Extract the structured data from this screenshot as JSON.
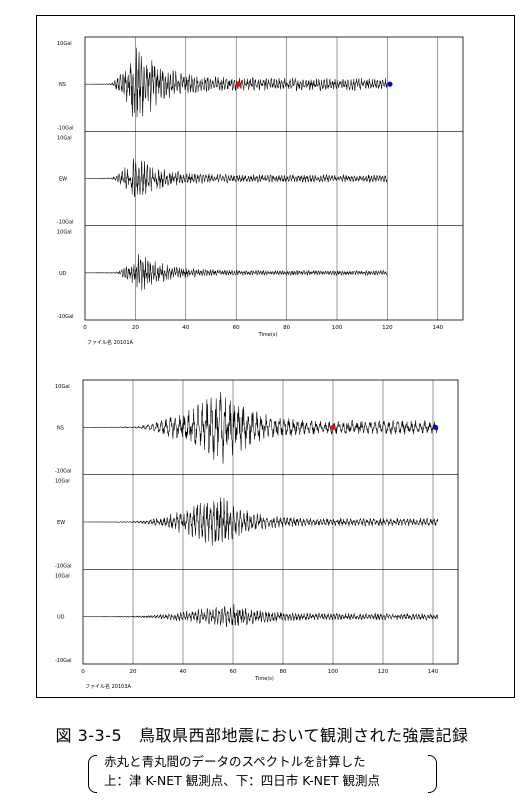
{
  "figure": {
    "caption_number": "図 3-3-5",
    "caption_title": "鳥取県西部地震において観測された強震記録",
    "note_lines": [
      "赤丸と青丸間のデータのスペクトルを計算した",
      "上：津 K-NET 観測点、下：四日市 K-NET 観測点"
    ]
  },
  "colors": {
    "red_marker": "#ff0000",
    "blue_marker": "#0000ff",
    "trace": "#000000",
    "grid": "#000000"
  },
  "chart_data": [
    {
      "type": "line",
      "title": "",
      "file_label": "ファイル名 20101A",
      "xlabel": "Time(s)",
      "x_ticks": [
        0,
        20,
        40,
        60,
        80,
        100,
        120,
        140
      ],
      "xlim": [
        0,
        150
      ],
      "y_top_label": "10Gal",
      "y_bottom_label": "-10Gal",
      "ylim": [
        -10,
        10
      ],
      "record_end_s": 120,
      "channels": [
        {
          "name": "NS",
          "onset_s": 10,
          "peak_s": 20,
          "peak_amp": 9.5,
          "coda": 1.3,
          "freq": 0.95
        },
        {
          "name": "EW",
          "onset_s": 10,
          "peak_s": 20,
          "peak_amp": 4.8,
          "coda": 0.8,
          "freq": 0.9
        },
        {
          "name": "UD",
          "onset_s": 12,
          "peak_s": 22,
          "peak_amp": 4.2,
          "coda": 0.5,
          "freq": 1.05
        }
      ],
      "markers": [
        {
          "channel": "NS",
          "color": "red",
          "time_s": 61
        },
        {
          "channel": "NS",
          "color": "blue",
          "time_s": 121
        }
      ]
    },
    {
      "type": "line",
      "title": "",
      "file_label": "ファイル名 20103A",
      "xlabel": "Time(s)",
      "x_ticks": [
        0,
        20,
        40,
        60,
        80,
        100,
        120,
        140
      ],
      "xlim": [
        0,
        150
      ],
      "y_top_label": "10Gal",
      "y_bottom_label": "-10Gal",
      "ylim": [
        -10,
        10
      ],
      "record_end_s": 142,
      "channels": [
        {
          "name": "NS",
          "onset_s": 20,
          "peak_s": 58,
          "peak_amp": 8.0,
          "coda": 1.4,
          "freq": 0.55
        },
        {
          "name": "EW",
          "onset_s": 20,
          "peak_s": 55,
          "peak_amp": 5.6,
          "coda": 0.8,
          "freq": 0.75
        },
        {
          "name": "UD",
          "onset_s": 20,
          "peak_s": 60,
          "peak_amp": 2.6,
          "coda": 0.7,
          "freq": 0.85
        }
      ],
      "markers": [
        {
          "channel": "NS",
          "color": "red",
          "time_s": 100
        },
        {
          "channel": "NS",
          "color": "blue",
          "time_s": 141
        }
      ]
    }
  ]
}
